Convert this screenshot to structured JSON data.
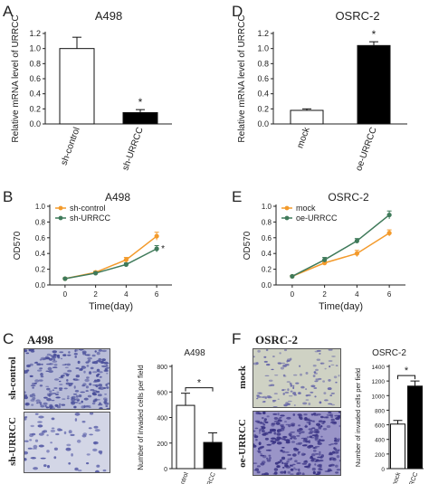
{
  "panels": {
    "A": "A",
    "B": "B",
    "C": "C",
    "D": "D",
    "E": "E",
    "F": "F"
  },
  "chart_data": [
    {
      "id": "A",
      "type": "bar",
      "title": "A498",
      "ylabel": "Relative mRNA level of URRCC",
      "categories": [
        "sh-control",
        "sh-URRCC"
      ],
      "values": [
        1.0,
        0.15
      ],
      "errors": [
        0.15,
        0.04
      ],
      "colors": [
        "#ffffff",
        "#000000"
      ],
      "ylim": [
        0,
        1.2
      ],
      "yticks": [
        "0.0",
        "0.2",
        "0.4",
        "0.6",
        "0.8",
        "1.0",
        "1.2"
      ],
      "significance": "*"
    },
    {
      "id": "D",
      "type": "bar",
      "title": "OSRC-2",
      "ylabel": "Relative mRNA level of URRCC",
      "categories": [
        "mock",
        "oe-URRCC"
      ],
      "values": [
        0.18,
        1.04
      ],
      "errors": [
        0.02,
        0.05
      ],
      "colors": [
        "#ffffff",
        "#000000"
      ],
      "ylim": [
        0,
        1.2
      ],
      "yticks": [
        "0.0",
        "0.2",
        "0.4",
        "0.6",
        "0.8",
        "1.0",
        "1.2"
      ],
      "significance": "*"
    },
    {
      "id": "B",
      "type": "line",
      "title": "A498",
      "xlabel": "Time(day)",
      "ylabel": "OD570",
      "x": [
        0,
        2,
        4,
        6
      ],
      "xticks": [
        "0",
        "2",
        "4",
        "6"
      ],
      "ylim": [
        0,
        1.0
      ],
      "yticks": [
        "0.0",
        "0.2",
        "0.4",
        "0.6",
        "0.8",
        "1.0"
      ],
      "series": [
        {
          "name": "sh-control",
          "values": [
            0.08,
            0.16,
            0.32,
            0.62
          ],
          "errors": [
            0.01,
            0.015,
            0.03,
            0.05
          ],
          "color": "#f39a2b"
        },
        {
          "name": "sh-URRCC",
          "values": [
            0.08,
            0.15,
            0.26,
            0.46
          ],
          "errors": [
            0.01,
            0.015,
            0.02,
            0.04
          ],
          "color": "#3f7a5a"
        }
      ],
      "legend": "top-left",
      "significance": "*"
    },
    {
      "id": "E",
      "type": "line",
      "title": "OSRC-2",
      "xlabel": "Time(day)",
      "ylabel": "OD570",
      "x": [
        0,
        2,
        4,
        6
      ],
      "xticks": [
        "0",
        "2",
        "4",
        "6"
      ],
      "ylim": [
        0,
        1.0
      ],
      "yticks": [
        "0.0",
        "0.2",
        "0.4",
        "0.6",
        "0.8",
        "1.0"
      ],
      "series": [
        {
          "name": "mock",
          "values": [
            0.11,
            0.28,
            0.4,
            0.66
          ],
          "errors": [
            0.01,
            0.02,
            0.04,
            0.04
          ],
          "color": "#f39a2b"
        },
        {
          "name": "oe-URRCC",
          "values": [
            0.11,
            0.32,
            0.56,
            0.89
          ],
          "errors": [
            0.01,
            0.03,
            0.03,
            0.05
          ],
          "color": "#3f7a5a"
        }
      ],
      "legend": "top-left",
      "significance": "*"
    },
    {
      "id": "C",
      "type": "bar",
      "title": "A498",
      "ylabel": "Number of invaded cells per field",
      "categories": [
        "sh-control",
        "sh-URRCC"
      ],
      "values": [
        495,
        205
      ],
      "errors": [
        95,
        75
      ],
      "colors": [
        "#ffffff",
        "#000000"
      ],
      "ylim": [
        0,
        800
      ],
      "yticks": [
        "0",
        "200",
        "400",
        "600",
        "800"
      ],
      "significance": "*"
    },
    {
      "id": "F",
      "type": "bar",
      "title": "OSRC-2",
      "ylabel": "Number of invaded cells per field",
      "categories": [
        "mock",
        "oe-URRCC"
      ],
      "values": [
        610,
        1130
      ],
      "errors": [
        50,
        70
      ],
      "colors": [
        "#ffffff",
        "#000000"
      ],
      "ylim": [
        0,
        1400
      ],
      "yticks": [
        "0",
        "200",
        "400",
        "600",
        "800",
        "1000",
        "1200",
        "1400"
      ],
      "significance": "*"
    }
  ],
  "micrographs": {
    "C": {
      "title": "A498",
      "rows": [
        "sh-control",
        "sh-URRCC"
      ]
    },
    "F": {
      "title": "OSRC-2",
      "rows": [
        "mock",
        "oe-URRCC"
      ]
    }
  }
}
